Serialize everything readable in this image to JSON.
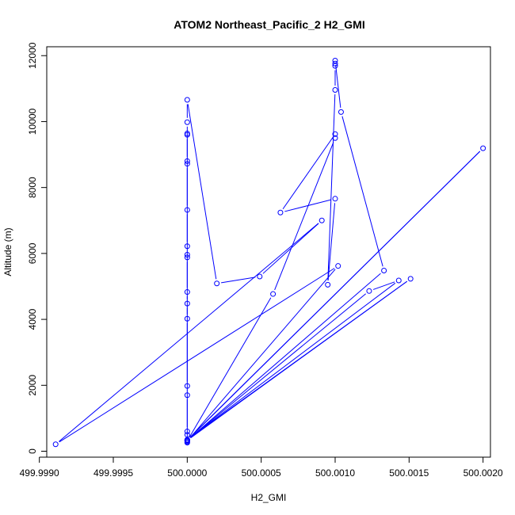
{
  "chart_data": {
    "type": "scatter",
    "title": "ATOM2 Northeast_Pacific_2 H2_GMI",
    "xlabel": "H2_GMI",
    "ylabel": "Altitude (m)",
    "xlim": [
      499.99905,
      500.00205
    ],
    "ylim": [
      -180,
      12270
    ],
    "x_ticks": [
      {
        "value": 499.999,
        "label": "499.9990"
      },
      {
        "value": 499.9995,
        "label": "499.9995"
      },
      {
        "value": 500.0,
        "label": "500.0000"
      },
      {
        "value": 500.0005,
        "label": "500.0005"
      },
      {
        "value": 500.001,
        "label": "500.0010"
      },
      {
        "value": 500.0015,
        "label": "500.0015"
      },
      {
        "value": 500.002,
        "label": "500.0020"
      }
    ],
    "y_ticks": [
      {
        "value": 0,
        "label": "0"
      },
      {
        "value": 2000,
        "label": "2000"
      },
      {
        "value": 4000,
        "label": "4000"
      },
      {
        "value": 6000,
        "label": "6000"
      },
      {
        "value": 8000,
        "label": "8000"
      },
      {
        "value": 10000,
        "label": "10000"
      },
      {
        "value": 12000,
        "label": "12000"
      }
    ],
    "grid": false,
    "color": "#0000ff",
    "series": [
      {
        "mode": "lines+markers",
        "points": [
          [
            500.0,
            9640
          ],
          [
            500.0,
            9600
          ],
          [
            500.0,
            8800
          ],
          [
            500.0,
            8720
          ],
          [
            500.0,
            7320
          ],
          [
            500.0,
            6220
          ],
          [
            500.0,
            5960
          ],
          [
            500.0,
            5880
          ],
          [
            500.0,
            4830
          ],
          [
            500.0,
            4480
          ],
          [
            500.0,
            4020
          ],
          [
            500.0,
            1980
          ],
          [
            500.0,
            1700
          ],
          [
            500.0,
            600
          ],
          [
            500.0,
            500
          ],
          [
            500.0,
            280
          ],
          [
            500.0,
            260
          ],
          [
            500.0,
            9980
          ],
          [
            500.0,
            10660
          ],
          [
            500.0002,
            5090
          ],
          [
            500.00049,
            5300
          ],
          [
            500.00091,
            7000
          ],
          [
            499.99911,
            210
          ],
          [
            500.00102,
            5620
          ],
          [
            500.0,
            310
          ],
          [
            500.00058,
            4770
          ],
          [
            500.001,
            9500
          ],
          [
            500.001,
            9620
          ],
          [
            500.00063,
            7240
          ],
          [
            500.001,
            7660
          ],
          [
            500.00095,
            5050
          ],
          [
            500.001,
            10960
          ],
          [
            500.001,
            11690
          ],
          [
            500.001,
            11760
          ],
          [
            500.001,
            11850
          ],
          [
            500.00104,
            10290
          ],
          [
            500.00133,
            5480
          ],
          [
            500.0,
            330
          ],
          [
            500.00123,
            4860
          ],
          [
            500.00143,
            5180
          ],
          [
            500.0,
            350
          ],
          [
            500.00151,
            5230
          ],
          [
            500.0,
            330
          ],
          [
            500.002,
            9190
          ],
          [
            500.0,
            340
          ]
        ]
      }
    ]
  }
}
